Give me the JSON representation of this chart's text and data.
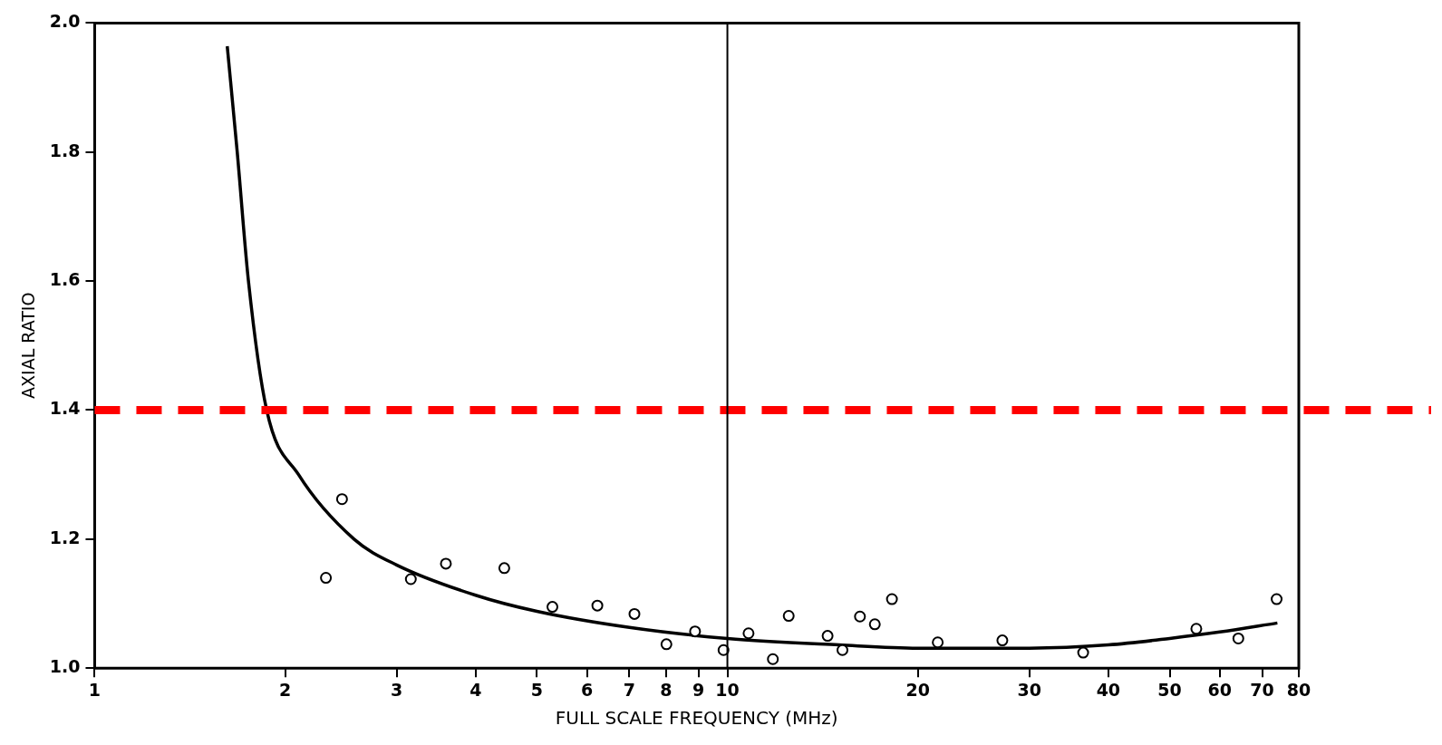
{
  "chart_data": {
    "type": "scatter",
    "xlabel": "FULL SCALE FREQUENCY (MHz)",
    "ylabel": "AXIAL RATIO",
    "log": "x",
    "xlim": [
      1,
      80
    ],
    "ylim": [
      1.0,
      2.0
    ],
    "xticks": [
      1,
      2,
      3,
      4,
      5,
      6,
      7,
      8,
      9,
      10,
      20,
      30,
      40,
      50,
      60,
      70,
      80
    ],
    "yticks": [
      {
        "value": 1.0,
        "label": "1.0"
      },
      {
        "value": 1.2,
        "label": "1.2"
      },
      {
        "value": 1.4,
        "label": "1.4"
      },
      {
        "value": 1.6,
        "label": "1.6"
      },
      {
        "value": 1.8,
        "label": "1.8"
      },
      {
        "value": 2.0,
        "label": "2.0"
      }
    ],
    "series": [
      {
        "type": "line",
        "marker": "none",
        "color": "#000000",
        "x": [
          1.62,
          1.68,
          1.75,
          1.87,
          2.1,
          2.57,
          3,
          4,
          5,
          7,
          10,
          15,
          20,
          30,
          40,
          50,
          60,
          74
        ],
        "values": [
          1.964,
          1.8,
          1.6,
          1.4,
          1.3,
          1.2,
          1.16,
          1.113,
          1.088,
          1.063,
          1.046,
          1.036,
          1.031,
          1.031,
          1.036,
          1.046,
          1.056,
          1.07
        ]
      },
      {
        "marker": "circle",
        "color": "#000000",
        "x": [
          2.32,
          2.46,
          3.16,
          3.59,
          4.44,
          5.29,
          6.23,
          7.13,
          8.01,
          8.89,
          9.86,
          10.8,
          11.8,
          12.5,
          14.4,
          15.2,
          16.2,
          17.1,
          18.2,
          21.5,
          27.2,
          36.5,
          55.1,
          64.2,
          73.8
        ],
        "values": [
          1.14,
          1.262,
          1.138,
          1.162,
          1.155,
          1.095,
          1.097,
          1.084,
          1.037,
          1.057,
          1.028,
          1.054,
          1.014,
          1.081,
          1.05,
          1.028,
          1.08,
          1.068,
          1.107,
          1.04,
          1.043,
          1.024,
          1.061,
          1.046,
          1.107
        ]
      }
    ],
    "ref_lines": [
      {
        "axis": "y",
        "value": 1.4,
        "color": "#ff0000",
        "line_style": "dashed"
      },
      {
        "axis": "x",
        "value": 10,
        "color": "#000000",
        "line_style": "solid"
      }
    ]
  }
}
